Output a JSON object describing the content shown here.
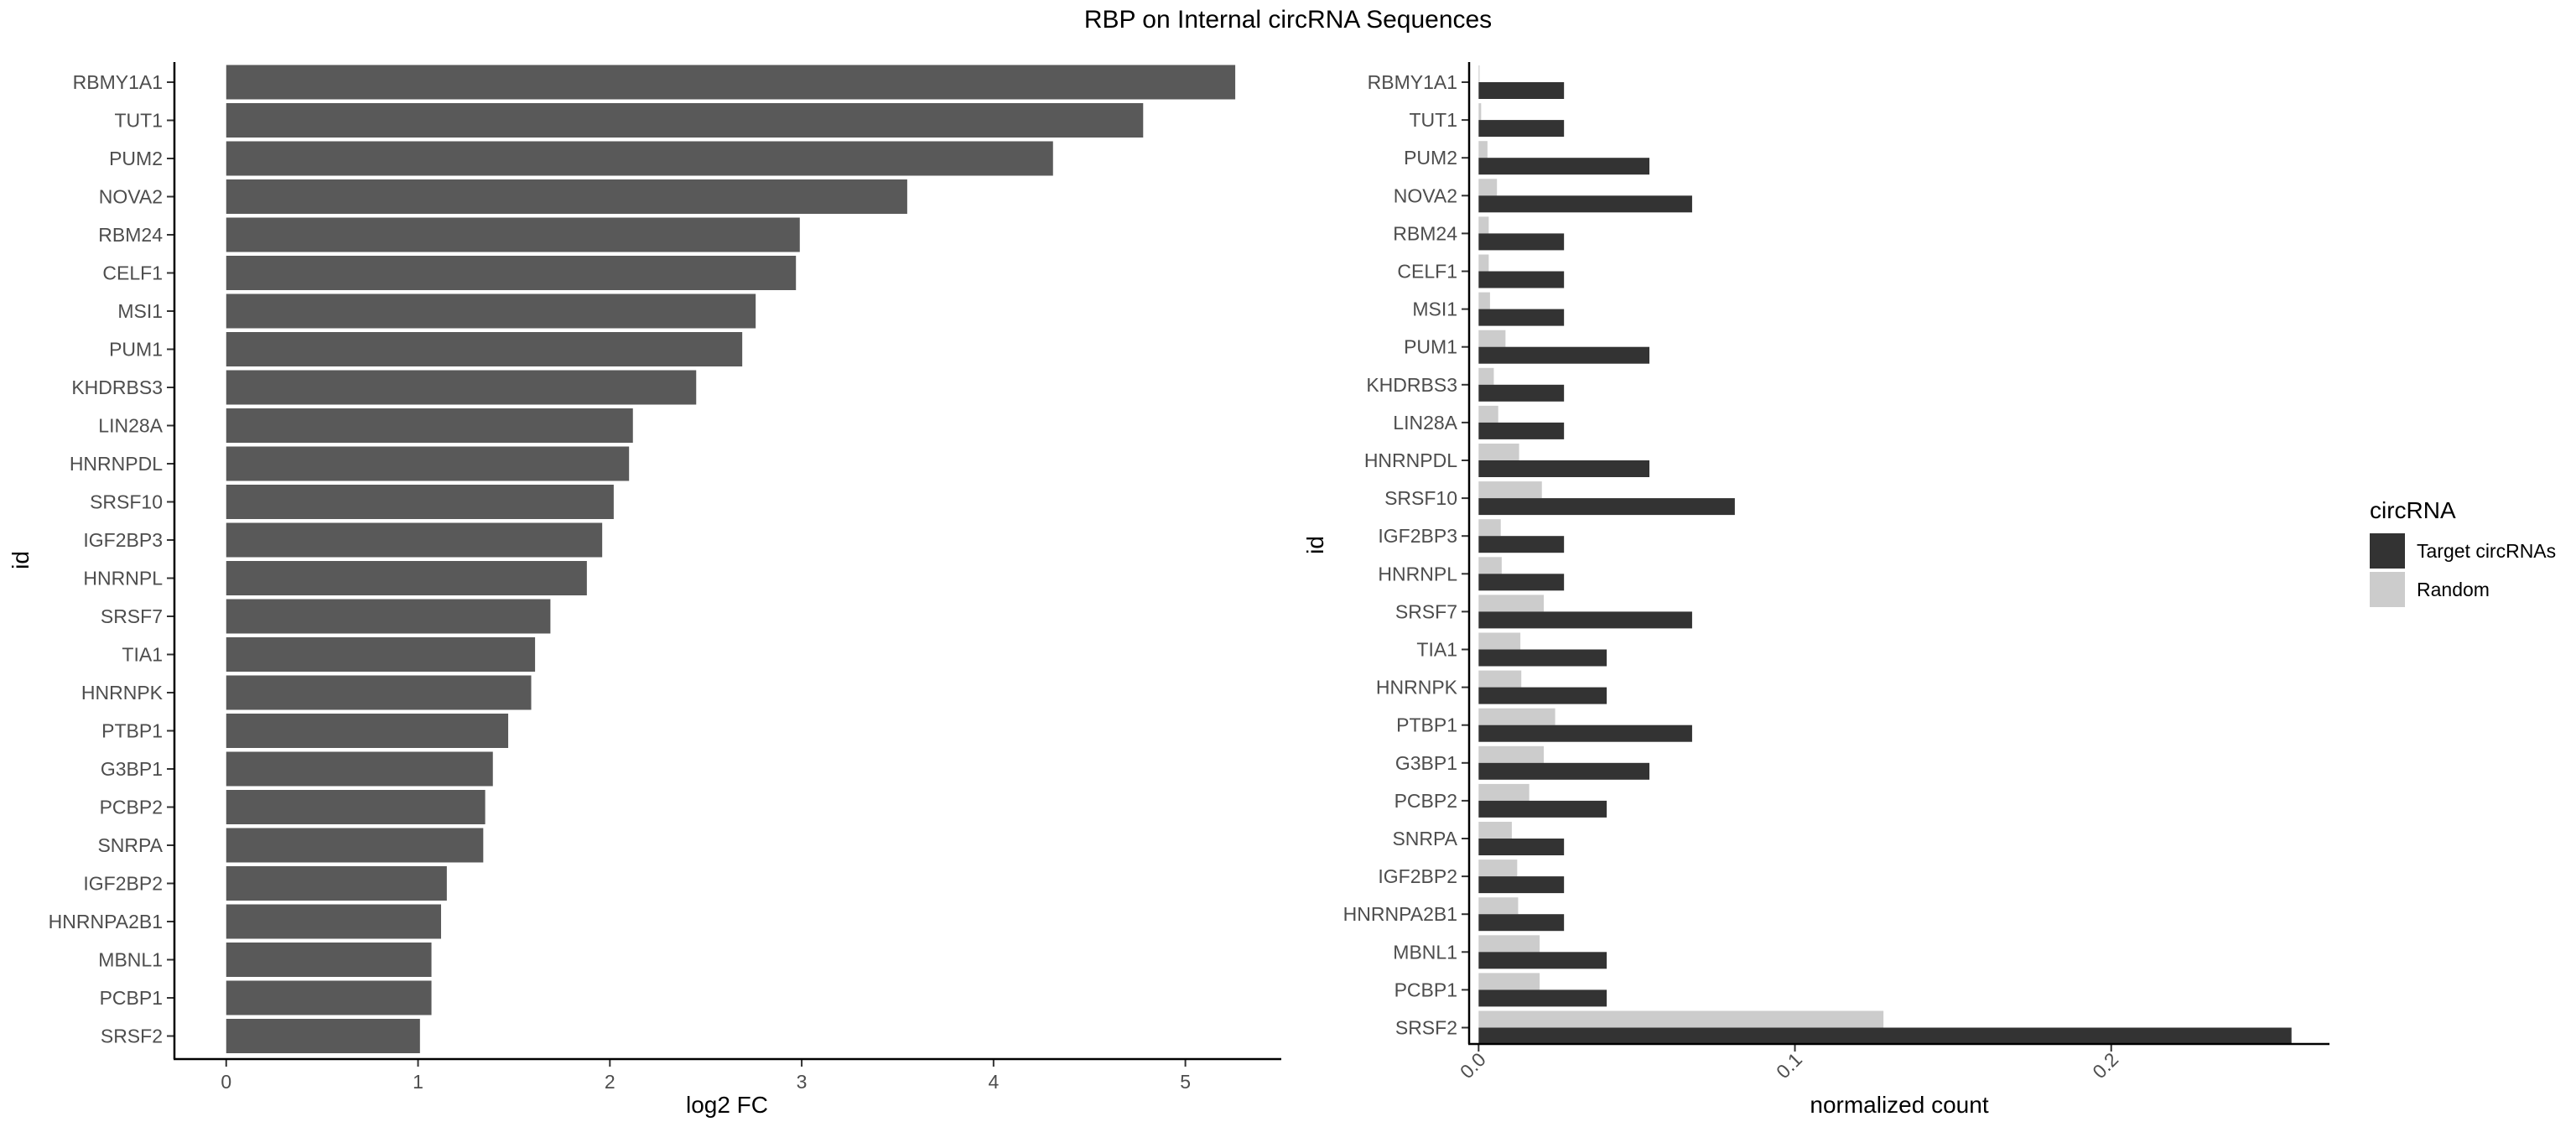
{
  "title": "RBP on Internal circRNA Sequences",
  "chart_data": [
    {
      "type": "bar",
      "orientation": "horizontal",
      "xlabel": "log2 FC",
      "ylabel": "id",
      "xlim": [
        -0.27,
        5.5
      ],
      "xticks": [
        0,
        1,
        2,
        3,
        4,
        5
      ],
      "bar_color": "#595959",
      "categories": [
        "RBMY1A1",
        "TUT1",
        "PUM2",
        "NOVA2",
        "RBM24",
        "CELF1",
        "MSI1",
        "PUM1",
        "KHDRBS3",
        "LIN28A",
        "HNRNPDL",
        "SRSF10",
        "IGF2BP3",
        "HNRNPL",
        "SRSF7",
        "TIA1",
        "HNRNPK",
        "PTBP1",
        "G3BP1",
        "PCBP2",
        "SNRPA",
        "IGF2BP2",
        "HNRNPA2B1",
        "MBNL1",
        "PCBP1",
        "SRSF2"
      ],
      "values": [
        5.26,
        4.78,
        4.31,
        3.55,
        2.99,
        2.97,
        2.76,
        2.69,
        2.45,
        2.12,
        2.1,
        2.02,
        1.96,
        1.88,
        1.69,
        1.61,
        1.59,
        1.47,
        1.39,
        1.35,
        1.34,
        1.15,
        1.12,
        1.07,
        1.07,
        1.01
      ]
    },
    {
      "type": "bar",
      "orientation": "horizontal",
      "grouped": true,
      "xlabel": "normalized count",
      "ylabel": "id",
      "xlim": [
        -0.003,
        0.269
      ],
      "xticks": [
        0.0,
        0.1,
        0.2
      ],
      "xtick_labels": [
        "0.0",
        "0.1",
        "0.2"
      ],
      "categories": [
        "RBMY1A1",
        "TUT1",
        "PUM2",
        "NOVA2",
        "RBM24",
        "CELF1",
        "MSI1",
        "PUM1",
        "KHDRBS3",
        "LIN28A",
        "HNRNPDL",
        "SRSF10",
        "IGF2BP3",
        "HNRNPL",
        "SRSF7",
        "TIA1",
        "HNRNPK",
        "PTBP1",
        "G3BP1",
        "PCBP2",
        "SNRPA",
        "IGF2BP2",
        "HNRNPA2B1",
        "MBNL1",
        "PCBP1",
        "SRSF2"
      ],
      "series": [
        {
          "name": "Target circRNAs",
          "color": "#333333",
          "values": [
            0.027,
            0.027,
            0.054,
            0.0675,
            0.027,
            0.027,
            0.027,
            0.054,
            0.027,
            0.027,
            0.054,
            0.081,
            0.027,
            0.027,
            0.0675,
            0.0405,
            0.0405,
            0.0675,
            0.054,
            0.0405,
            0.027,
            0.027,
            0.027,
            0.0405,
            0.0405,
            0.257
          ]
        },
        {
          "name": "Random",
          "color": "#cccccc",
          "values": [
            0.0003,
            0.0008,
            0.0028,
            0.0058,
            0.0032,
            0.0032,
            0.0036,
            0.0085,
            0.0048,
            0.0062,
            0.0128,
            0.02,
            0.007,
            0.0073,
            0.0206,
            0.0132,
            0.0135,
            0.0242,
            0.0206,
            0.016,
            0.0105,
            0.0122,
            0.0125,
            0.0193,
            0.0193,
            0.128
          ]
        }
      ],
      "legend": {
        "title": "circRNA",
        "position": "right",
        "entries": [
          "Target circRNAs",
          "Random"
        ]
      }
    }
  ]
}
